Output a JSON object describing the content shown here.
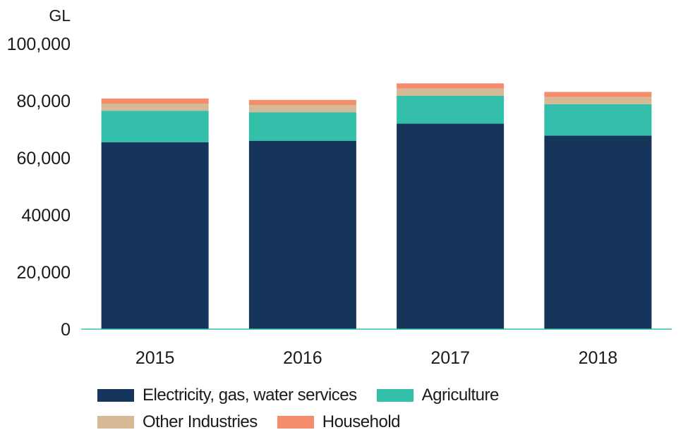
{
  "chart_data": {
    "type": "bar",
    "stacked": true,
    "unit_label": "GL",
    "categories": [
      "2015",
      "2016",
      "2017",
      "2018"
    ],
    "series": [
      {
        "name": "Electricity, gas, water services",
        "color": "#15365a",
        "values": [
          65500,
          66000,
          72000,
          67800
        ]
      },
      {
        "name": "Agriculture",
        "color": "#33bfa9",
        "values": [
          11000,
          10000,
          9800,
          11000
        ]
      },
      {
        "name": "Other Industries",
        "color": "#d6b996",
        "values": [
          2500,
          2500,
          2500,
          2500
        ]
      },
      {
        "name": "Household",
        "color": "#f48d6c",
        "values": [
          1800,
          1800,
          1800,
          1800
        ]
      }
    ],
    "y_ticks": [
      {
        "value": 0,
        "label": "0"
      },
      {
        "value": 20000,
        "label": "20,000"
      },
      {
        "value": 40000,
        "label": "40000"
      },
      {
        "value": 60000,
        "label": "60,000"
      },
      {
        "value": 80000,
        "label": "80,000"
      },
      {
        "value": 100000,
        "label": "100,000"
      }
    ],
    "ylim": [
      0,
      100000
    ],
    "grid": false,
    "axis_color": "#33bfa9",
    "legend_position": "bottom"
  }
}
